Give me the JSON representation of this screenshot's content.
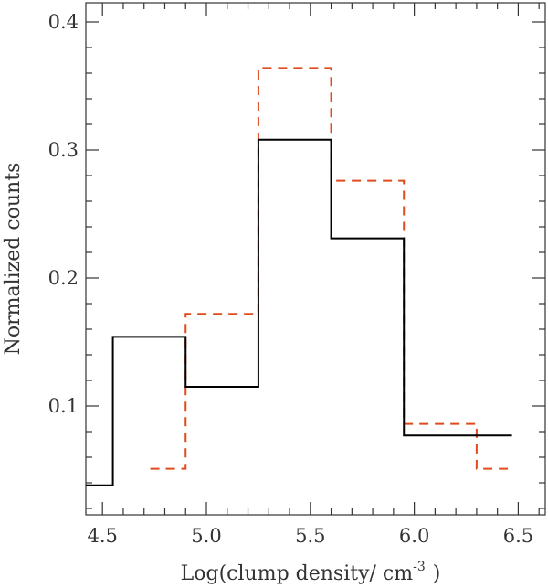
{
  "chart_data": {
    "type": "line",
    "style": "step-histogram",
    "xlabel": "Log(clump density/ cm",
    "xlabel_superscript": "-3",
    "xlabel_suffix": ")",
    "ylabel": "Normalized counts",
    "xlim": [
      4.42,
      6.63
    ],
    "ylim": [
      0.015,
      0.415
    ],
    "xticks": [
      4.5,
      5.0,
      5.5,
      6.0,
      6.5
    ],
    "xtick_labels": [
      "4.5",
      "5.0",
      "5.5",
      "6.0",
      "6.5"
    ],
    "yticks": [
      0.1,
      0.2,
      0.3,
      0.4
    ],
    "ytick_labels": [
      "0.1",
      "0.2",
      "0.3",
      "0.4"
    ],
    "grid": false,
    "series": [
      {
        "color": "#000000",
        "dash": "solid",
        "x": [
          4.42,
          4.55,
          4.55,
          4.9,
          4.9,
          5.25,
          5.25,
          5.6,
          5.6,
          5.95,
          5.95,
          6.47
        ],
        "y": [
          0.038,
          0.038,
          0.154,
          0.154,
          0.115,
          0.115,
          0.308,
          0.308,
          0.231,
          0.231,
          0.077,
          0.077
        ]
      },
      {
        "color": "#e04a1f",
        "dash": "dashed",
        "x": [
          4.73,
          4.9,
          4.9,
          5.25,
          5.25,
          5.6,
          5.6,
          5.95,
          5.95,
          6.3,
          6.3,
          6.47
        ],
        "y": [
          0.051,
          0.051,
          0.172,
          0.172,
          0.364,
          0.364,
          0.276,
          0.276,
          0.086,
          0.086,
          0.051,
          0.051
        ]
      }
    ]
  }
}
